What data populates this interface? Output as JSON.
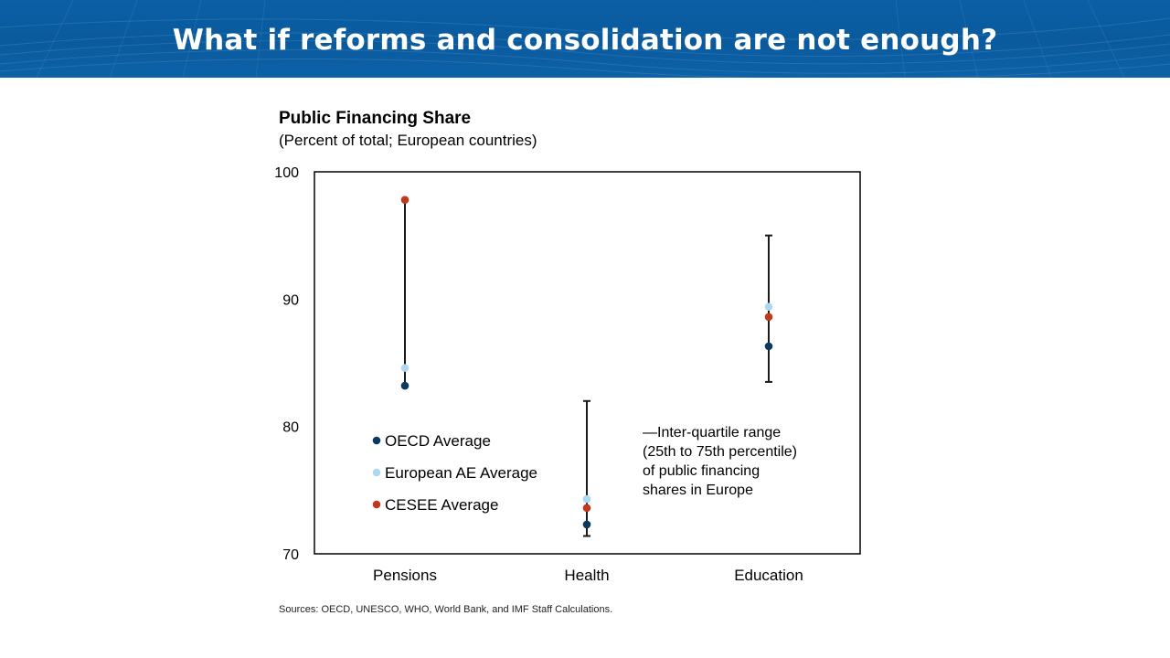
{
  "slide": {
    "title": "What if reforms and consolidation are not enough?",
    "sources": "Sources: OECD, UNESCO, WHO, World Bank, and IMF Staff Calculations."
  },
  "colors": {
    "banner": "#0b5fa5",
    "oecd": "#0b3a5e",
    "european_ae": "#add8f0",
    "cesee": "#c0391b",
    "range": "#1a1a1a"
  },
  "chart_data": {
    "type": "scatter",
    "title": "Public Financing Share",
    "subtitle": "(Percent of total; European countries)",
    "xlabel": "",
    "ylabel": "",
    "ylim": [
      70,
      100
    ],
    "yticks": [
      70,
      80,
      90,
      100
    ],
    "categories": [
      "Pensions",
      "Health",
      "Education"
    ],
    "series": [
      {
        "name": "OECD Average",
        "color": "#0b3a5e",
        "values": [
          83.2,
          72.3,
          86.3
        ]
      },
      {
        "name": "European AE Average",
        "color": "#add8f0",
        "values": [
          84.6,
          74.3,
          89.4
        ]
      },
      {
        "name": "CESEE Average",
        "color": "#c0391b",
        "values": [
          97.8,
          73.6,
          88.6
        ]
      }
    ],
    "ranges": {
      "name": "Inter-quartile range (25th to 75th percentile) of public financing shares in Europe",
      "low": [
        83.2,
        71.4,
        83.5
      ],
      "high": [
        97.8,
        82.0,
        95.0
      ],
      "capped": [
        false,
        true,
        true
      ]
    },
    "legend": {
      "placement": "lower-left",
      "range_note_lines": [
        "—Inter-quartile range",
        "(25th to 75th percentile)",
        "of public financing",
        "shares in Europe"
      ]
    }
  }
}
